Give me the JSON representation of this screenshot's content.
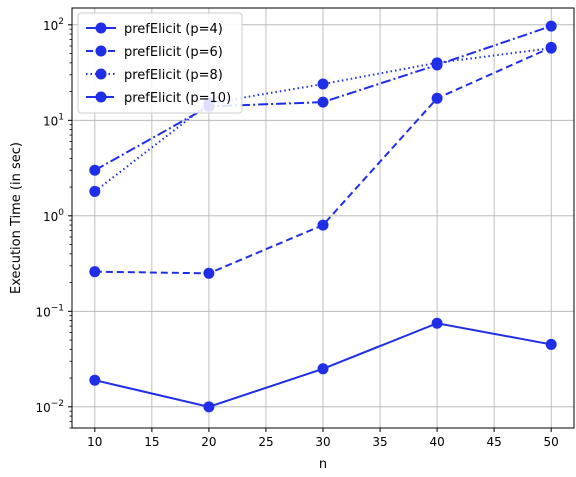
{
  "chart_data": {
    "type": "line",
    "xlabel": "n",
    "ylabel": "Execution Time (in sec)",
    "yscale": "log",
    "xlim": [
      8,
      52
    ],
    "ylim": [
      0.006,
      150
    ],
    "grid": true,
    "legend_position": "top-left",
    "x_ticks": [
      10,
      15,
      20,
      25,
      30,
      35,
      40,
      45,
      50
    ],
    "y_ticks": [
      {
        "value": 0.01,
        "base": "10",
        "exp": "−2"
      },
      {
        "value": 0.1,
        "base": "10",
        "exp": "−1"
      },
      {
        "value": 1,
        "base": "10",
        "exp": "0"
      },
      {
        "value": 10,
        "base": "10",
        "exp": "1"
      },
      {
        "value": 100,
        "base": "10",
        "exp": "2"
      }
    ],
    "color": "#1f2fe8",
    "x": [
      10,
      20,
      30,
      40,
      50
    ],
    "series": [
      {
        "name": "prefElicit (p=4)",
        "linestyle": "solid",
        "values": [
          0.019,
          0.01,
          0.025,
          0.075,
          0.045
        ]
      },
      {
        "name": "prefElicit (p=6)",
        "linestyle": "dashed",
        "values": [
          0.26,
          0.25,
          0.8,
          17,
          58
        ]
      },
      {
        "name": "prefElicit (p=8)",
        "linestyle": "dotted",
        "values": [
          1.8,
          15,
          24,
          40,
          57
        ]
      },
      {
        "name": "prefElicit (p=10)",
        "linestyle": "dashdot",
        "values": [
          3.0,
          14,
          15.5,
          38,
          97
        ]
      }
    ]
  }
}
